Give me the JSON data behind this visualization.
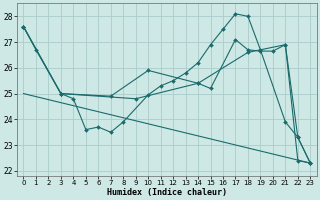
{
  "xlabel": "Humidex (Indice chaleur)",
  "xlim": [
    -0.5,
    23.5
  ],
  "ylim": [
    21.8,
    28.5
  ],
  "yticks": [
    22,
    23,
    24,
    25,
    26,
    27,
    28
  ],
  "xticks": [
    0,
    1,
    2,
    3,
    4,
    5,
    6,
    7,
    8,
    9,
    10,
    11,
    12,
    13,
    14,
    15,
    16,
    17,
    18,
    19,
    20,
    21,
    22,
    23
  ],
  "bg_color": "#cde8e5",
  "grid_color": "#aaccca",
  "line_color": "#1a6b6b",
  "line1_x": [
    0,
    1,
    3,
    4,
    5,
    6,
    7,
    8,
    10,
    11,
    12,
    13,
    14,
    15,
    16,
    17,
    18,
    19,
    21,
    22,
    23
  ],
  "line1_y": [
    27.6,
    26.7,
    25.0,
    24.8,
    23.6,
    23.7,
    23.5,
    23.9,
    24.95,
    25.3,
    25.5,
    25.8,
    26.2,
    26.9,
    27.5,
    28.1,
    28.0,
    26.7,
    23.9,
    23.3,
    22.3
  ],
  "line2_x": [
    0,
    3,
    7,
    10,
    14,
    15,
    17,
    18,
    19,
    20,
    21,
    22,
    23
  ],
  "line2_y": [
    27.6,
    25.0,
    24.9,
    25.9,
    25.4,
    25.2,
    27.1,
    26.7,
    26.65,
    26.65,
    26.9,
    22.4,
    22.3
  ],
  "line3_x": [
    0,
    3,
    9,
    14,
    18,
    21,
    22,
    23
  ],
  "line3_y": [
    27.6,
    25.0,
    24.8,
    25.4,
    26.6,
    26.9,
    23.3,
    22.3
  ],
  "line4_x": [
    0,
    23
  ],
  "line4_y": [
    25.0,
    22.3
  ]
}
